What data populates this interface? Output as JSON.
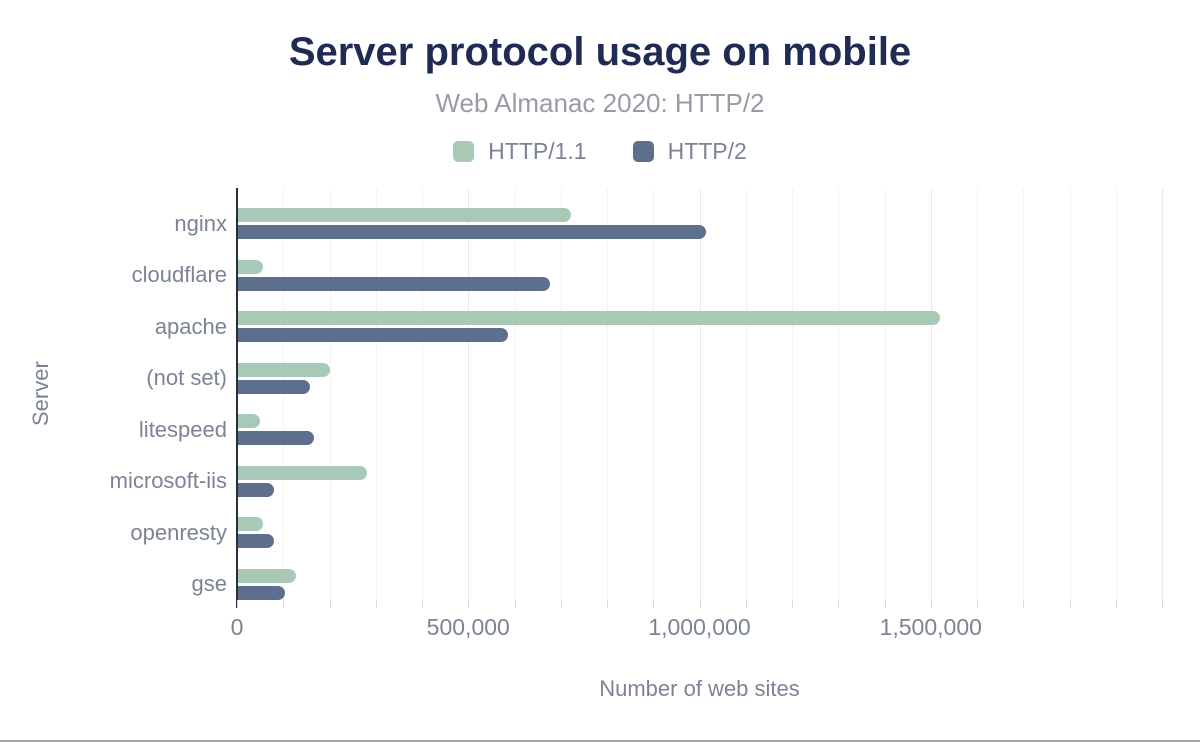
{
  "chart": {
    "title": "Server protocol usage on mobile",
    "subtitle": "Web Almanac 2020: HTTP/2"
  },
  "chart_data": {
    "type": "bar",
    "orientation": "horizontal",
    "title": "Server protocol usage on mobile",
    "subtitle": "Web Almanac 2020: HTTP/2",
    "xlabel": "Number of web sites",
    "ylabel": "Server",
    "categories": [
      "nginx",
      "cloudflare",
      "apache",
      "(not set)",
      "litespeed",
      "microsoft-iis",
      "openresty",
      "gse"
    ],
    "series": [
      {
        "name": "HTTP/1.1",
        "color": "#a7c9b6",
        "values": [
          723000,
          57000,
          1521000,
          201000,
          50000,
          282000,
          57000,
          128000
        ]
      },
      {
        "name": "HTTP/2",
        "color": "#5e6f8d",
        "values": [
          1015000,
          677000,
          586000,
          157000,
          166000,
          80000,
          80000,
          103000
        ]
      }
    ],
    "xlim": [
      0,
      2000000
    ],
    "x_tick_values": [
      0,
      500000,
      1000000,
      1500000
    ],
    "x_tick_labels": [
      "0",
      "500,000",
      "1,000,000",
      "1,500,000"
    ],
    "minor_gridline_interval": 100000,
    "major_gridline_interval": 500000,
    "grid": "vertical",
    "legend_position": "top"
  },
  "colors": {
    "title": "#1f2b52",
    "subtitle": "#989ca5",
    "axis_text": "#7c8493",
    "axis_line": "#2b2e34",
    "gridline_minor": "#f2f2f5",
    "gridline_major": "#e8e8ed",
    "series_http11": "#a7c9b6",
    "series_http2": "#5e6f8d"
  }
}
